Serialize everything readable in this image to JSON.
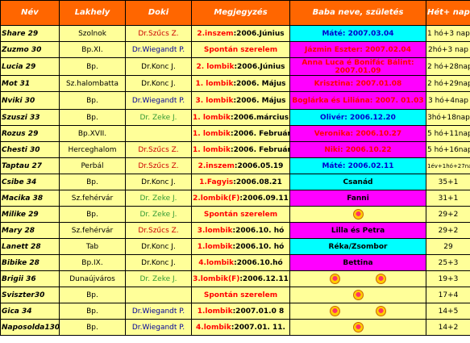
{
  "headers": {
    "nev": "Név",
    "lakhely": "Lakhely",
    "doki": "Doki",
    "megjegyzes": "Megjegyzés",
    "baba": "Baba neve, születés",
    "hetnap": "Hét+ nap"
  },
  "colors": {
    "header_bg": "#ff6600",
    "row_bg": "#ffff99",
    "boy_bg": "#00ffff",
    "girl_bg": "#ff00ff"
  },
  "rows": [
    {
      "nev": "Share 29",
      "lakhely": "Szolnok",
      "doki": "Dr.Szűcs Z.",
      "doki_color": "red",
      "note_red": "2.inszem",
      "note_black": ":2006.Június",
      "baba": "Máté: 2007.03.04",
      "baba_bg": "cyan",
      "baba_color": "blue",
      "hetnap": "1 hó+3 nap"
    },
    {
      "nev": "Zuzmo 30",
      "lakhely": "Bp.XI.",
      "doki": "Dr.Wiegandt P.",
      "doki_color": "blue",
      "note_red": "Spontán szerelem",
      "note_black": "",
      "baba": "Jázmin Eszter: 2007.02.04",
      "baba_bg": "magenta",
      "baba_color": "red",
      "hetnap": "2hó+3 nap"
    },
    {
      "nev": "Lucia 29",
      "lakhely": "Bp.",
      "doki": "Dr.Konc J.",
      "doki_color": "black",
      "note_red": "2. lombik",
      "note_black": ":2006.Június",
      "baba": "Anna Luca é Bonifác Bálint: 2007.01.09",
      "baba_bg": "magenta",
      "baba_color": "red",
      "hetnap": "2 hó+28nap"
    },
    {
      "nev": "Mot 31",
      "lakhely": "Sz.halombatta",
      "doki": "Dr.Konc J.",
      "doki_color": "black",
      "note_red": "1. lombik",
      "note_black": ":2006. Május",
      "baba": "Krisztina: 2007.01.08",
      "baba_bg": "magenta",
      "baba_color": "red",
      "hetnap": "2 hó+29nap"
    },
    {
      "nev": "Nviki 30",
      "lakhely": "Bp.",
      "doki": "Dr.Wiegandt P.",
      "doki_color": "blue",
      "note_red": "3. lombik",
      "note_black": ":2006. Május",
      "baba": "Boglárka és Liliána: 2007. 01.03",
      "baba_bg": "magenta",
      "baba_color": "red",
      "hetnap": "3 hó+4nap"
    },
    {
      "nev": "Szuszi 33",
      "lakhely": "Bp.",
      "doki": "Dr. Zeke J.",
      "doki_color": "green",
      "note_red": "1. lombik",
      "note_black": ":2006.március",
      "baba": "Olivér: 2006.12.20",
      "baba_bg": "cyan",
      "baba_color": "blue",
      "hetnap": "3hó+18nap"
    },
    {
      "nev": "Rozus 29",
      "lakhely": "Bp.XVII.",
      "doki": "",
      "doki_color": "black",
      "note_red": "1. lombik",
      "note_black": ":2006. Február",
      "baba": "Veronika: 2006.10.27",
      "baba_bg": "magenta",
      "baba_color": "red",
      "hetnap": "5 hó+11nap"
    },
    {
      "nev": "Chesti 30",
      "lakhely": "Herceghalom",
      "doki": "Dr.Szűcs Z.",
      "doki_color": "red",
      "note_red": "1. lombik",
      "note_black": ":2006. Február",
      "baba": "Niki: 2006.10.22",
      "baba_bg": "magenta",
      "baba_color": "red",
      "hetnap": "5 hó+16nap"
    },
    {
      "nev": "Taptau 27",
      "lakhely": "Perbál",
      "doki": "Dr.Szűcs Z.",
      "doki_color": "red",
      "note_red": "2.inszem",
      "note_black": ":2006.05.19",
      "baba": "Máté: 2006.02.11",
      "baba_bg": "cyan",
      "baba_color": "blue",
      "hetnap": "1év+1hó+27nap"
    },
    {
      "nev": "Csibe 34",
      "lakhely": "Bp.",
      "doki": "Dr.Konc J.",
      "doki_color": "black",
      "note_red": "1.Fagyis",
      "note_black": ":2006.08.21",
      "baba": "Csanád",
      "baba_bg": "cyan",
      "baba_color": "black",
      "hetnap": "35+1"
    },
    {
      "nev": "Macika 38",
      "lakhely": "Sz.fehérvár",
      "doki": "Dr. Zeke J.",
      "doki_color": "green",
      "note_red": "2.lombik(F)",
      "note_black": ":2006.09.11",
      "baba": "Fanni",
      "baba_bg": "magenta",
      "baba_color": "black",
      "hetnap": "31+1"
    },
    {
      "nev": "Milike 29",
      "lakhely": "Bp.",
      "doki": "Dr. Zeke J.",
      "doki_color": "green",
      "note_red": "Spontán szerelem",
      "note_black": "",
      "baba": "",
      "baba_bg": "yellow",
      "baba_color": "black",
      "baba_heart": true,
      "hetnap": "29+2"
    },
    {
      "nev": "Mary 28",
      "lakhely": "Sz.fehérvár",
      "doki": "Dr.Szűcs Z.",
      "doki_color": "red",
      "note_red": "3.lombik",
      "note_black": ":2006.10. hó",
      "baba": "Lilla és Petra",
      "baba_bg": "magenta",
      "baba_color": "black",
      "hetnap": "29+2"
    },
    {
      "nev": "Lanett 28",
      "lakhely": "Tab",
      "doki": "Dr.Konc J.",
      "doki_color": "black",
      "note_red": "1.lombik",
      "note_black": ":2006.10. hó",
      "baba": "Réka/Zsombor",
      "baba_bg": "cyan",
      "baba_color": "black",
      "hetnap": "29"
    },
    {
      "nev": "Bibike 28",
      "lakhely": "Bp.IX.",
      "doki": "Dr.Konc J.",
      "doki_color": "black",
      "note_red": "4.lombik",
      "note_black": ":2006.10.hó",
      "baba": "Bettina",
      "baba_bg": "magenta",
      "baba_color": "black",
      "hetnap": "25+3"
    },
    {
      "nev": "Brigii 36",
      "lakhely": "Dunaújváros",
      "doki": "Dr. Zeke J.",
      "doki_color": "green",
      "note_red": "3.lombik(F)",
      "note_black": ":2006.12.11",
      "baba": "",
      "baba_bg": "yellow",
      "baba_color": "black",
      "baba_hearts": 2,
      "hetnap": "19+3"
    },
    {
      "nev": "Sviszter30",
      "lakhely": "Bp.",
      "doki": "",
      "doki_color": "black",
      "note_red": "Spontán szerelem",
      "note_black": "",
      "baba": "",
      "baba_bg": "yellow",
      "baba_color": "black",
      "baba_heart": true,
      "hetnap": "17+4"
    },
    {
      "nev": "Gica  34",
      "lakhely": "Bp.",
      "doki": "Dr.Wiegandt P.",
      "doki_color": "blue",
      "note_red": "1.lombik",
      "note_black": ":2007.01.0 8",
      "baba": "",
      "baba_bg": "yellow",
      "baba_color": "black",
      "baba_hearts": 2,
      "hetnap": "14+5"
    },
    {
      "nev": "Naposolda130",
      "lakhely": "Bp.",
      "doki": "Dr.Wiegandt P.",
      "doki_color": "blue",
      "note_red": "4.lombik",
      "note_black": ":2007.01. 11.",
      "baba": "",
      "baba_bg": "yellow",
      "baba_color": "black",
      "baba_heart": true,
      "hetnap": "14+2"
    }
  ]
}
